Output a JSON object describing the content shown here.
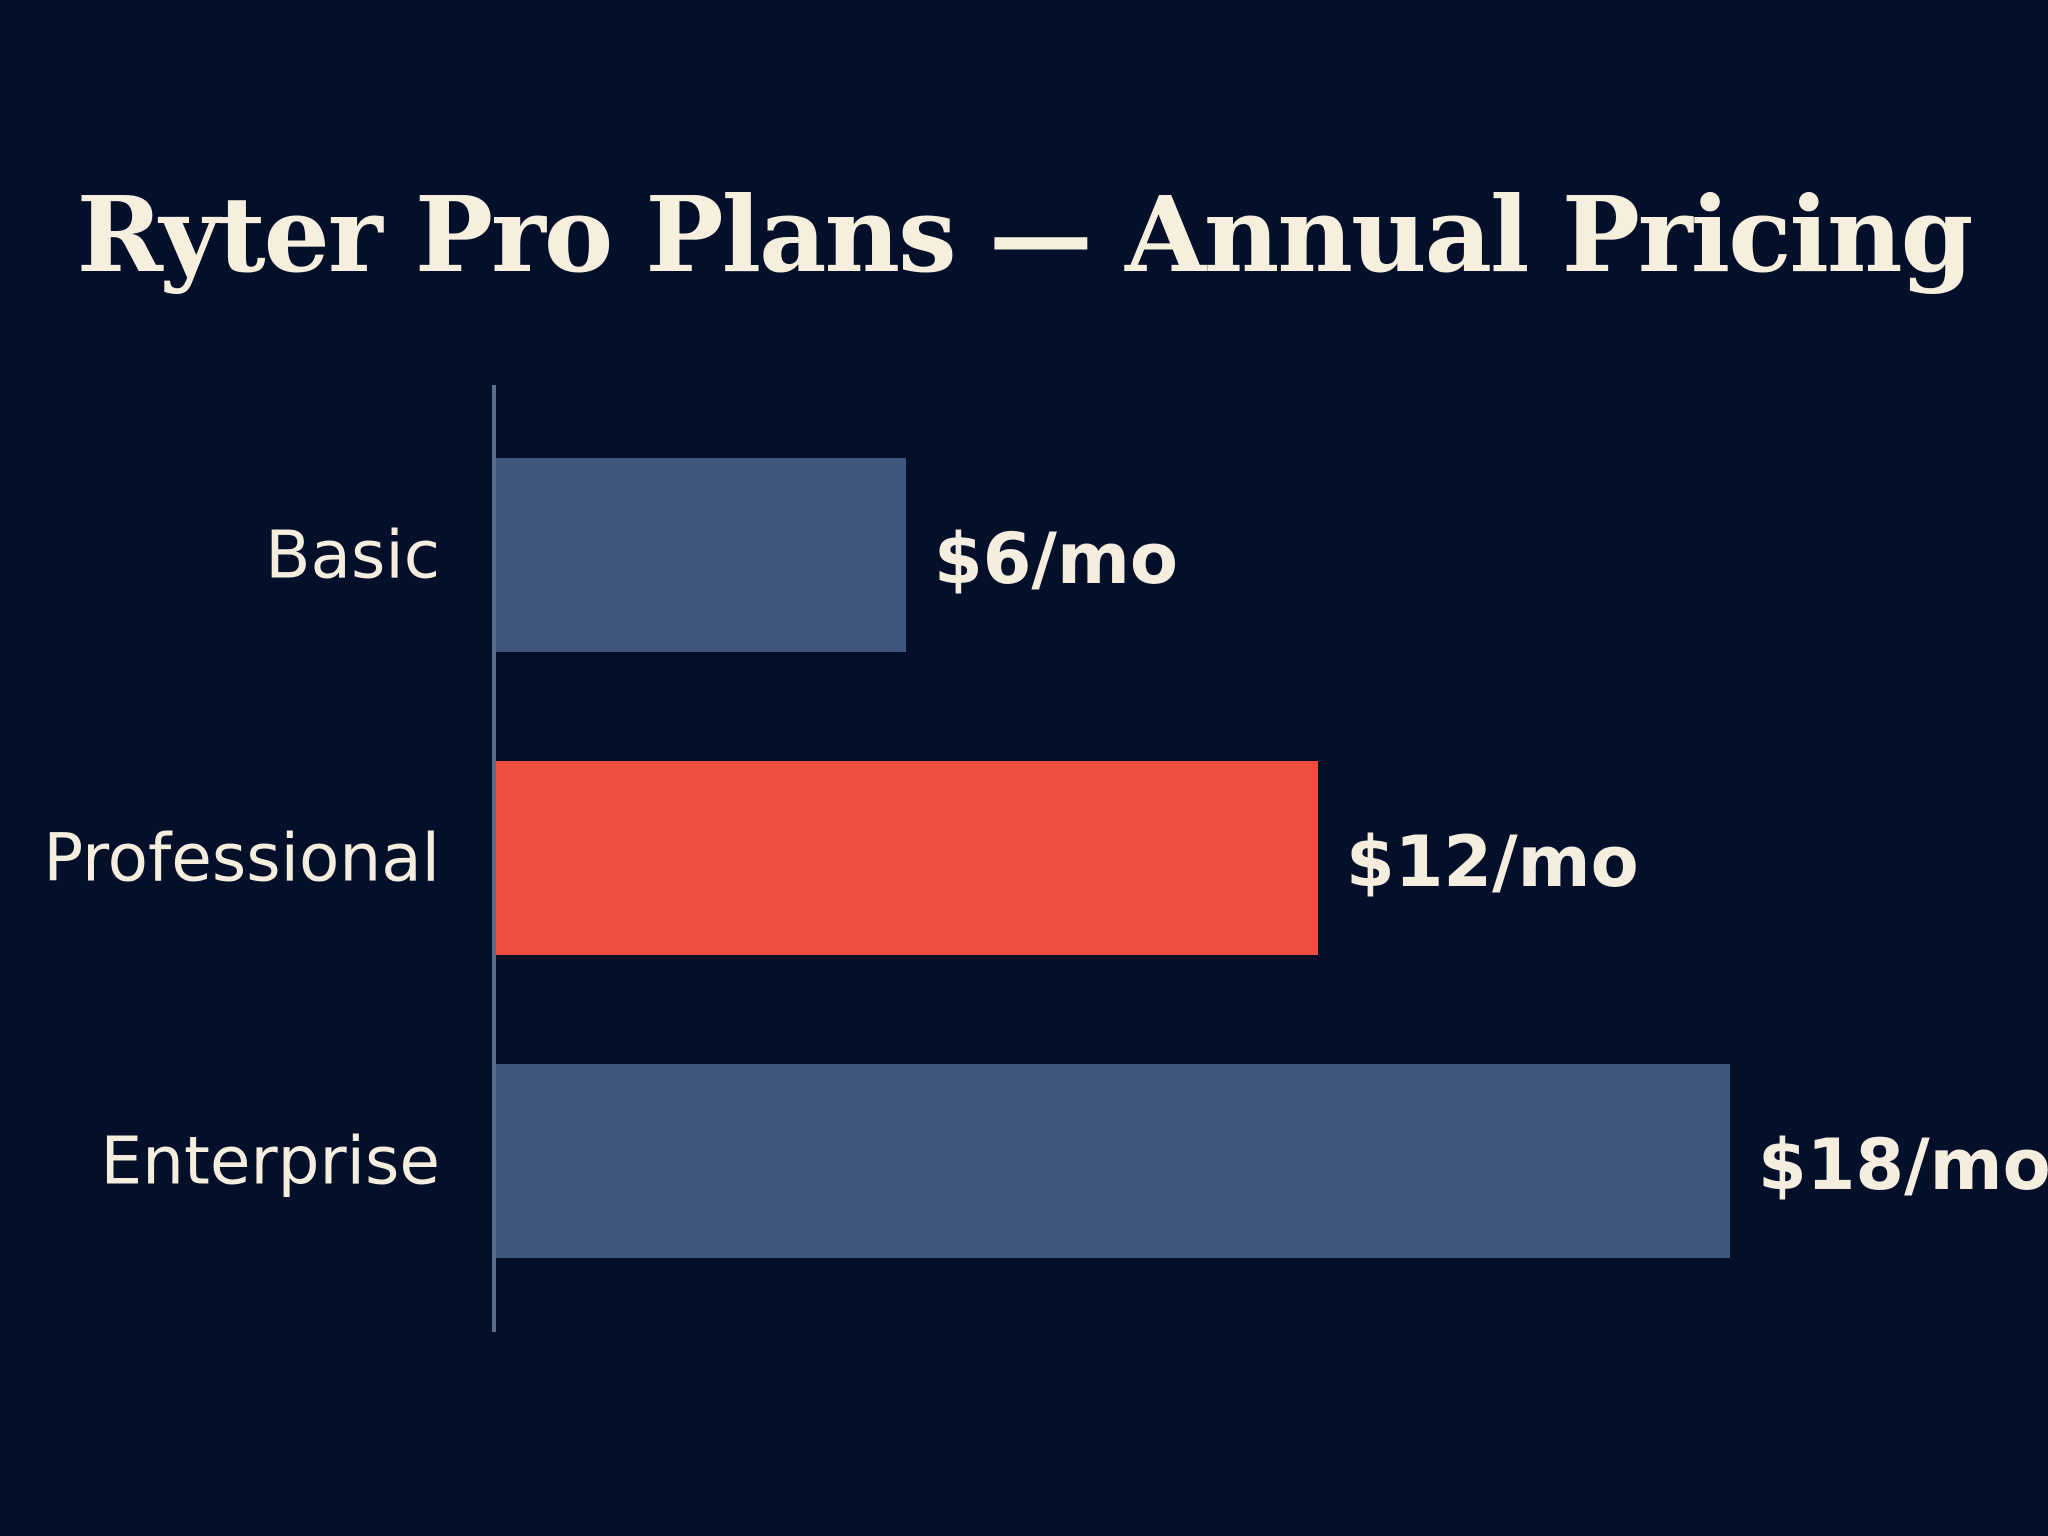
{
  "colors": {
    "background": "#040f2a",
    "bar_default": "#3e567e",
    "bar_highlight": "#ee4e40",
    "axis": "#5a6d8a",
    "text": "#f5eedf"
  },
  "chart_data": {
    "type": "bar",
    "orientation": "horizontal",
    "title": "Ryter Pro Plans — Annual Pricing",
    "categories": [
      "Basic",
      "Professional",
      "Enterprise"
    ],
    "values": [
      6,
      12,
      18
    ],
    "value_labels": [
      "$6/mo",
      "$12/mo",
      "$18/mo"
    ],
    "highlight_index": 1,
    "xlim": [
      0,
      18
    ],
    "grid": false,
    "xlabel": "",
    "ylabel": ""
  }
}
